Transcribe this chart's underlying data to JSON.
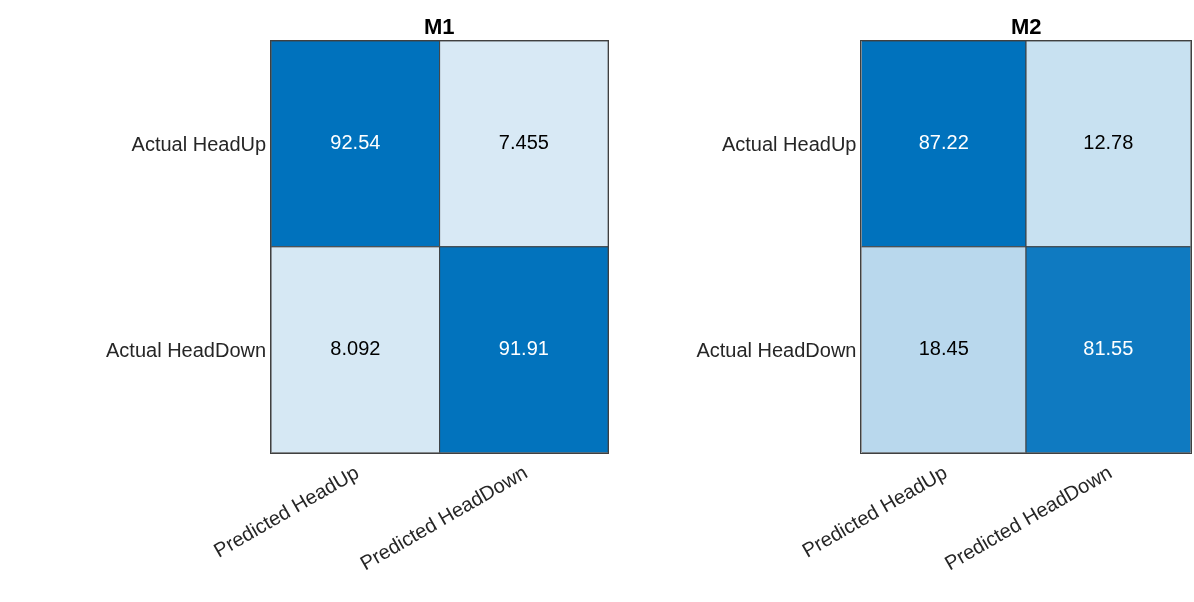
{
  "chart_data": [
    {
      "type": "heatmap",
      "title": "M1",
      "categories": [
        "Predicted HeadUp",
        "Predicted HeadDown"
      ],
      "y_categories": [
        "Actual HeadUp",
        "Actual HeadDown"
      ],
      "cells": [
        [
          92.54,
          7.455
        ],
        [
          8.092,
          91.91
        ]
      ],
      "data_labels": true
    },
    {
      "type": "heatmap",
      "title": "M2",
      "categories": [
        "Predicted HeadUp",
        "Predicted HeadDown"
      ],
      "y_categories": [
        "Actual HeadUp",
        "Actual HeadDown"
      ],
      "cells": [
        [
          87.22,
          12.78
        ],
        [
          18.45,
          81.55
        ]
      ],
      "data_labels": true
    }
  ]
}
